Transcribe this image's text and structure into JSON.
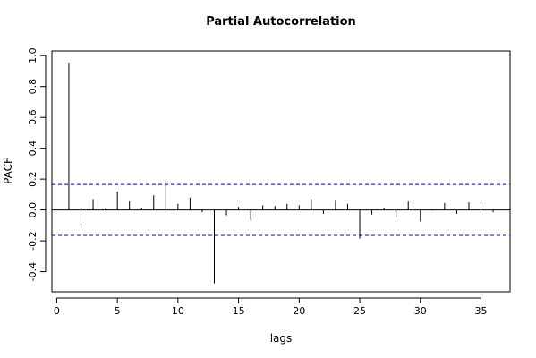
{
  "chart_data": {
    "type": "bar",
    "title": "Partial Autocorrelation",
    "xlabel": "lags",
    "ylabel": "PACF",
    "xlim": [
      -0.4,
      37.4
    ],
    "ylim": [
      -0.53,
      1.03
    ],
    "x_ticks": [
      0,
      5,
      10,
      15,
      20,
      25,
      30,
      35
    ],
    "y_ticks": [
      -0.4,
      -0.2,
      0.0,
      0.2,
      0.4,
      0.6,
      0.8,
      1.0
    ],
    "y_tick_labels": [
      "-0.4",
      "-0.2",
      "0.0",
      "0.2",
      "0.4",
      "0.6",
      "0.8",
      "1.0"
    ],
    "confidence_bound": 0.165,
    "lags": [
      1,
      2,
      3,
      4,
      5,
      6,
      7,
      8,
      9,
      10,
      11,
      12,
      13,
      14,
      15,
      16,
      17,
      18,
      19,
      20,
      21,
      22,
      23,
      24,
      25,
      26,
      27,
      28,
      29,
      30,
      31,
      32,
      33,
      34,
      35,
      36
    ],
    "values": [
      0.955,
      -0.095,
      0.07,
      0.01,
      0.12,
      0.055,
      0.015,
      0.095,
      0.19,
      0.04,
      0.08,
      -0.015,
      -0.475,
      -0.035,
      0.02,
      -0.065,
      0.03,
      0.025,
      0.04,
      0.03,
      0.07,
      -0.025,
      0.06,
      0.04,
      -0.185,
      -0.03,
      0.015,
      -0.05,
      0.055,
      -0.075,
      -0.005,
      0.045,
      -0.025,
      0.05,
      0.05,
      -0.015
    ],
    "colors": {
      "bars": "#000000",
      "confidence": "#0000cc",
      "zero_line": "#000000",
      "frame": "#000000"
    }
  }
}
